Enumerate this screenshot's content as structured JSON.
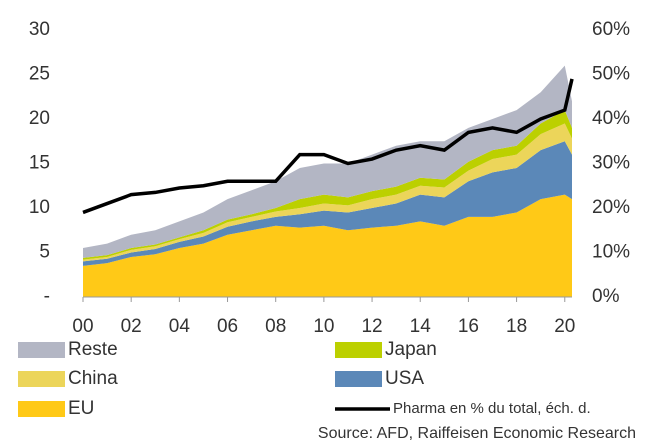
{
  "chart_data": {
    "type": "stacked-area-line",
    "x": [
      2000,
      2001,
      2002,
      2003,
      2004,
      2005,
      2006,
      2007,
      2008,
      2009,
      2010,
      2011,
      2012,
      2013,
      2014,
      2015,
      2016,
      2017,
      2018,
      2019,
      2020,
      2020.3
    ],
    "series": [
      {
        "name": "EU",
        "color": "#ffc917",
        "values": [
          3.5,
          3.8,
          4.5,
          4.8,
          5.5,
          6,
          7,
          7.5,
          8,
          7.8,
          8,
          7.5,
          7.8,
          8,
          8.5,
          8,
          9,
          9,
          9.5,
          11,
          11.5,
          11
        ]
      },
      {
        "name": "USA",
        "color": "#5b88b8",
        "values": [
          0.5,
          0.5,
          0.5,
          0.6,
          0.7,
          0.8,
          0.9,
          1,
          1,
          1.5,
          1.7,
          2,
          2.2,
          2.5,
          3,
          3.2,
          4,
          5,
          5,
          5.5,
          6,
          5
        ]
      },
      {
        "name": "China",
        "color": "#ecd55a",
        "values": [
          0.2,
          0.2,
          0.3,
          0.3,
          0.3,
          0.4,
          0.5,
          0.5,
          0.6,
          0.7,
          0.8,
          0.8,
          1,
          1,
          1,
          1.1,
          1.2,
          1.5,
          1.5,
          1.8,
          2,
          1.8
        ]
      },
      {
        "name": "Japan",
        "color": "#bcd000",
        "values": [
          0.2,
          0.2,
          0.2,
          0.2,
          0.2,
          0.3,
          0.3,
          0.3,
          0.4,
          1,
          1,
          0.9,
          0.9,
          0.9,
          0.9,
          0.9,
          1,
          1,
          1,
          1.2,
          1.5,
          1.2
        ]
      },
      {
        "name": "Reste",
        "color": "#b3b6c4",
        "values": [
          1.1,
          1.3,
          1.5,
          1.6,
          1.8,
          2,
          2.3,
          2.7,
          3,
          3.5,
          3.5,
          3.8,
          4.1,
          4.6,
          4.1,
          4.3,
          3.8,
          3.5,
          4,
          3.5,
          5,
          3
        ]
      },
      {
        "name": "Pharma en % du total, éch. d.",
        "color": "#000000",
        "axis": "y2",
        "values": [
          19,
          21,
          23,
          23.5,
          24.5,
          25,
          26,
          26,
          26,
          32,
          32,
          30,
          31,
          33,
          34,
          33,
          37,
          38,
          37,
          40,
          42,
          49
        ]
      }
    ],
    "xlim": [
      2000,
      2020.3
    ],
    "xticks": [
      {
        "value": 2000,
        "label": "00"
      },
      {
        "value": 2002,
        "label": "02"
      },
      {
        "value": 2004,
        "label": "04"
      },
      {
        "value": 2006,
        "label": "06"
      },
      {
        "value": 2008,
        "label": "08"
      },
      {
        "value": 2010,
        "label": "10"
      },
      {
        "value": 2012,
        "label": "12"
      },
      {
        "value": 2014,
        "label": "14"
      },
      {
        "value": 2016,
        "label": "16"
      },
      {
        "value": 2018,
        "label": "18"
      },
      {
        "value": 2020,
        "label": "20"
      }
    ],
    "ylim": [
      0,
      30
    ],
    "yticks": [
      {
        "value": 0,
        "label": "-"
      },
      5,
      10,
      15,
      20,
      25,
      30
    ],
    "y2lim": [
      0,
      60
    ],
    "y2ticks": [
      {
        "value": 0,
        "label": "0%"
      },
      {
        "value": 10,
        "label": "10%"
      },
      {
        "value": 20,
        "label": "20%"
      },
      {
        "value": 30,
        "label": "30%"
      },
      {
        "value": 40,
        "label": "40%"
      },
      {
        "value": 50,
        "label": "50%"
      },
      {
        "value": 60,
        "label": "60%"
      }
    ],
    "source": "Source: AFD, Raiffeisen Economic Research"
  }
}
